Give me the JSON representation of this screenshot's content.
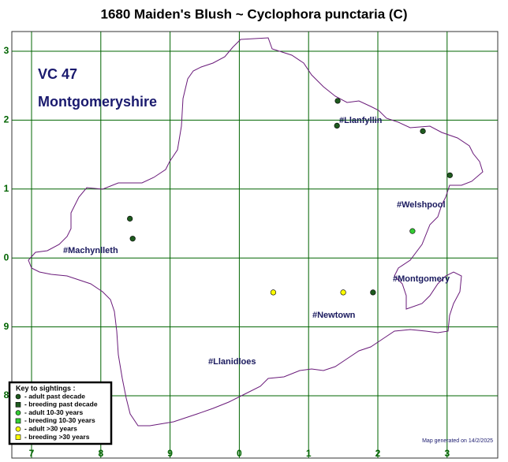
{
  "title": "1680 Maiden's Blush ~ Cyclophora punctaria (C)",
  "vc": {
    "number": "VC 47",
    "name": "Montgomeryshire"
  },
  "grid": {
    "x_labels": [
      7,
      8,
      9,
      0,
      1,
      2,
      3
    ],
    "y_labels": [
      3,
      2,
      1,
      0,
      9,
      8
    ],
    "color": "#006400",
    "label_color": "#006400"
  },
  "towns": [
    "#Llanfyllin",
    "#Welshpool",
    "#Machynlleth",
    "#Montgomery",
    "#Newtown",
    "#Llanidloes"
  ],
  "key": {
    "title": "Key to sightings :",
    "items": [
      {
        "label": "- adult past decade",
        "color": "#1e5a1e",
        "shape": "circle",
        "points": [
          [
            4.42,
            4.28
          ],
          [
            4.41,
            3.92
          ],
          [
            5.65,
            3.84
          ],
          [
            6.04,
            3.2
          ],
          [
            1.42,
            2.57
          ],
          [
            1.46,
            2.28
          ],
          [
            4.93,
            1.5
          ]
        ]
      },
      {
        "label": "- breeding past decade",
        "color": "#1e5a1e",
        "shape": "square",
        "points": []
      },
      {
        "label": "- adult 10-30 years",
        "color": "#33cc33",
        "shape": "circle",
        "points": [
          [
            5.5,
            2.39
          ]
        ]
      },
      {
        "label": "- breeding 10-30 years",
        "color": "#33cc33",
        "shape": "square",
        "points": []
      },
      {
        "label": "- adult >30 years",
        "color": "#ffff00",
        "shape": "circle",
        "points": [
          [
            3.49,
            1.5
          ],
          [
            4.5,
            1.5
          ]
        ]
      },
      {
        "label": "- breeding >30 years",
        "color": "#ffff00",
        "shape": "square",
        "points": []
      }
    ]
  },
  "footer": "Map generated on 14/2/2025"
}
